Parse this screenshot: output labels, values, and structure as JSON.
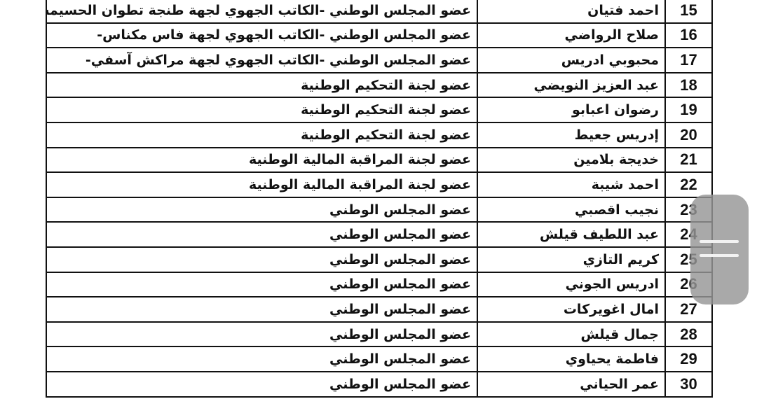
{
  "table": {
    "rows": [
      [
        15,
        "احمد فتيان",
        "عضو المجلس الوطني -الكاتب الجهوي لجهة طنجة تطوان الحسيمة-"
      ],
      [
        16,
        "صلاح الرواضي",
        "عضو المجلس الوطني -الكاتب الجهوي لجهة فاس مكناس-"
      ],
      [
        17,
        "محبوبي ادريس",
        "عضو المجلس الوطني -الكاتب الجهوي لجهة مراكش آسفي-"
      ],
      [
        18,
        "عبد العزيز النويضي",
        "عضو لجنة التحكيم الوطنية"
      ],
      [
        19,
        "رضوان اعبابو",
        "عضو لجنة التحكيم الوطنية"
      ],
      [
        20,
        "إدريس  جعيط",
        "عضو لجنة التحكيم الوطنية"
      ],
      [
        21,
        "خديجة بلامين",
        "عضو لجنة المراقبة المالية الوطنية"
      ],
      [
        22,
        "احمد شيبة",
        "عضو لجنة المراقبة المالية الوطنية"
      ],
      [
        23,
        "نجيب اقصبي",
        "عضو المجلس الوطني"
      ],
      [
        24,
        "عبد اللطيف قيلش",
        "عضو المجلس الوطني"
      ],
      [
        25,
        "كريم التازي",
        "عضو المجلس الوطني"
      ],
      [
        26,
        "ادريس الجوني",
        "عضو المجلس الوطني"
      ],
      [
        27,
        "امال اغويركات",
        "عضو المجلس الوطني"
      ],
      [
        28,
        "جمال قيلش",
        "عضو المجلس الوطني"
      ],
      [
        29,
        "فاطمة يحياوي",
        "عضو المجلس الوطني"
      ],
      [
        30,
        "عمر الحياني",
        "عضو المجلس الوطني"
      ]
    ]
  }
}
